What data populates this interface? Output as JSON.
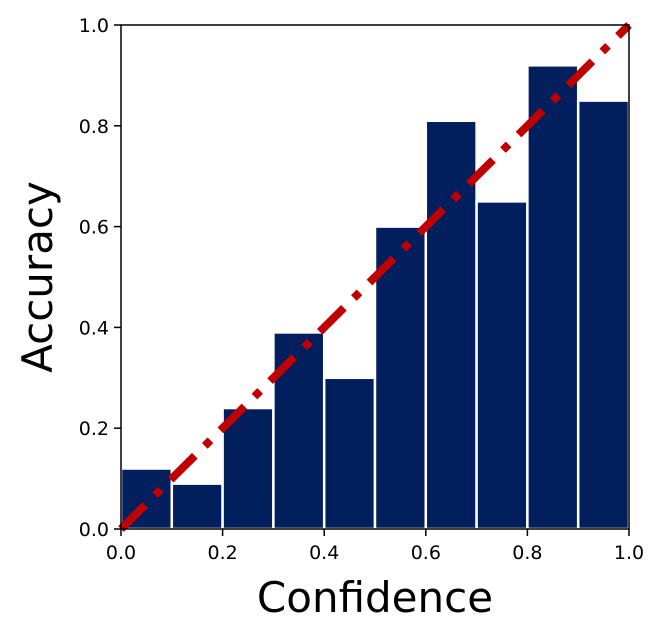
{
  "chart_data": {
    "type": "bar",
    "title": "",
    "xlabel": "Confidence",
    "ylabel": "Accuracy",
    "xlim": [
      0.0,
      1.0
    ],
    "ylim": [
      0.0,
      1.0
    ],
    "bin_width": 0.1,
    "bins": [
      {
        "x_start": 0.0,
        "x_end": 0.1,
        "value": 0.12
      },
      {
        "x_start": 0.1,
        "x_end": 0.2,
        "value": 0.09
      },
      {
        "x_start": 0.2,
        "x_end": 0.3,
        "value": 0.24
      },
      {
        "x_start": 0.3,
        "x_end": 0.4,
        "value": 0.39
      },
      {
        "x_start": 0.4,
        "x_end": 0.5,
        "value": 0.3
      },
      {
        "x_start": 0.5,
        "x_end": 0.6,
        "value": 0.6
      },
      {
        "x_start": 0.6,
        "x_end": 0.7,
        "value": 0.81
      },
      {
        "x_start": 0.7,
        "x_end": 0.8,
        "value": 0.65
      },
      {
        "x_start": 0.8,
        "x_end": 0.9,
        "value": 0.92
      },
      {
        "x_start": 0.9,
        "x_end": 1.0,
        "value": 0.85
      }
    ],
    "reference_line": {
      "style": "dash-dot",
      "points": [
        [
          0.0,
          0.0
        ],
        [
          1.0,
          1.0
        ]
      ]
    },
    "xticks": [
      "0.0",
      "0.2",
      "0.4",
      "0.6",
      "0.8",
      "1.0"
    ],
    "xtick_values": [
      0.0,
      0.2,
      0.4,
      0.6,
      0.8,
      1.0
    ],
    "yticks": [
      "0.0",
      "0.2",
      "0.4",
      "0.6",
      "0.8",
      "1.0"
    ],
    "ytick_values": [
      0.0,
      0.2,
      0.4,
      0.6,
      0.8,
      1.0
    ],
    "grid": false,
    "legend": "none",
    "colors": {
      "bar": "#001f5c",
      "bar_edge": "#ffffff",
      "reference_line": "#c00000"
    }
  }
}
